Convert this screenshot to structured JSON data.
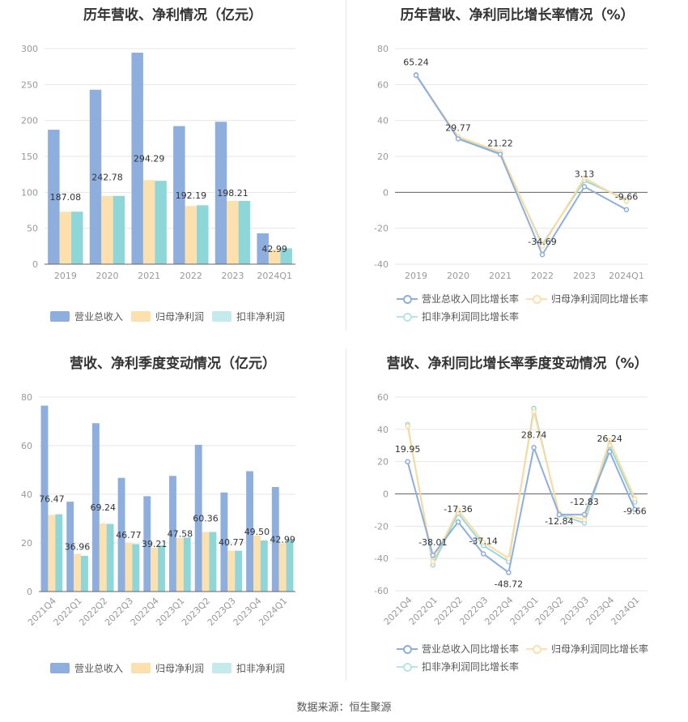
{
  "colors": {
    "revenue": "#8eaedd",
    "netprofit": "#fce0ad",
    "deducted": "#8ed6d8",
    "axis": "#999999",
    "grid": "#e6e6e6"
  },
  "legend": {
    "revenue": "营业总收入",
    "netprofit": "归母净利润",
    "deducted": "扣非净利润",
    "revenue_growth": "营业总收入同比增长率",
    "netprofit_growth": "归母净利润同比增长率",
    "deducted_growth": "扣非净利润同比增长率"
  },
  "source": "数据来源：恒生聚源",
  "chart_data": [
    {
      "id": "annual-bar",
      "type": "bar",
      "title": "历年营收、净利情况（亿元）",
      "categories": [
        "2019",
        "2020",
        "2021",
        "2022",
        "2023",
        "2024Q1"
      ],
      "ylim": [
        0,
        300
      ],
      "yticks": [
        0,
        50,
        100,
        150,
        200,
        250,
        300
      ],
      "series": [
        {
          "name": "营业总收入",
          "values": [
            187.08,
            242.78,
            294.29,
            192.19,
            198.21,
            42.99
          ],
          "labels": [
            "187.08",
            "242.78",
            "294.29",
            "192.19",
            "198.21",
            "42.99"
          ]
        },
        {
          "name": "归母净利润",
          "values": [
            73,
            95,
            117,
            81,
            88,
            20
          ]
        },
        {
          "name": "扣非净利润",
          "values": [
            73,
            95,
            116,
            82,
            88,
            22
          ]
        }
      ]
    },
    {
      "id": "annual-line",
      "type": "line",
      "title": "历年营收、净利同比增长率情况（%）",
      "categories": [
        "2019",
        "2020",
        "2021",
        "2022",
        "2023",
        "2024Q1"
      ],
      "ylim": [
        -40,
        80
      ],
      "yticks": [
        -40,
        -20,
        0,
        20,
        40,
        60,
        80
      ],
      "series": [
        {
          "name": "营业总收入同比增长率",
          "values": [
            65.24,
            29.77,
            21.22,
            -34.69,
            3.13,
            -9.66
          ],
          "labels": [
            "65.24",
            "29.77",
            "21.22",
            "-34.69",
            "3.13",
            "-9.66"
          ]
        },
        {
          "name": "归母净利润同比增长率",
          "values": [
            65,
            31,
            22.5,
            -30,
            8,
            -5
          ]
        },
        {
          "name": "扣非净利润同比增长率",
          "values": [
            65.5,
            30.5,
            21.5,
            -29,
            6.5,
            -4
          ]
        }
      ]
    },
    {
      "id": "quarter-bar",
      "type": "bar",
      "title": "营收、净利季度变动情况（亿元）",
      "categories": [
        "2021Q4",
        "2022Q1",
        "2022Q2",
        "2022Q3",
        "2022Q4",
        "2023Q1",
        "2023Q2",
        "2023Q3",
        "2023Q4",
        "2024Q1"
      ],
      "ylim": [
        0,
        80
      ],
      "yticks": [
        0,
        20,
        40,
        60,
        80
      ],
      "series": [
        {
          "name": "营业总收入",
          "values": [
            76.47,
            36.96,
            69.24,
            46.77,
            39.21,
            47.58,
            60.36,
            40.77,
            49.5,
            42.99
          ],
          "labels": [
            "76.47",
            "36.96",
            "69.24",
            "46.77",
            "39.21",
            "47.58",
            "60.36",
            "40.77",
            "49.50",
            "42.99"
          ]
        },
        {
          "name": "归母净利润",
          "values": [
            31.5,
            15.5,
            28,
            20,
            18,
            22,
            24.5,
            16.8,
            23,
            19.8
          ]
        },
        {
          "name": "扣非净利润",
          "values": [
            31.8,
            14.7,
            27.8,
            19.5,
            19,
            22.2,
            24.5,
            16.8,
            21,
            21.5
          ]
        }
      ]
    },
    {
      "id": "quarter-line",
      "type": "line",
      "title": "营收、净利同比增长率季度变动情况（%）",
      "categories": [
        "2021Q4",
        "2022Q1",
        "2022Q2",
        "2022Q3",
        "2022Q4",
        "2023Q1",
        "2023Q2",
        "2023Q3",
        "2023Q4",
        "2024Q1"
      ],
      "ylim": [
        -60,
        60
      ],
      "yticks": [
        -60,
        -40,
        -20,
        0,
        20,
        40,
        60
      ],
      "series": [
        {
          "name": "营业总收入同比增长率",
          "values": [
            19.95,
            -38.01,
            -17.36,
            -37.14,
            -48.72,
            28.74,
            -12.84,
            -12.83,
            26.24,
            -9.66
          ],
          "labels": [
            "19.95",
            "-38.01",
            "-17.36",
            "-37.14",
            "-48.72",
            "28.74",
            "-12.84",
            "-12.83",
            "26.24",
            "-9.66"
          ]
        },
        {
          "name": "归母净利润同比增长率",
          "values": [
            42,
            -42,
            -10,
            -30,
            -40,
            51,
            -12,
            -16,
            33,
            -3
          ]
        },
        {
          "name": "扣非净利润同比增长率",
          "values": [
            43,
            -44,
            -12,
            -32,
            -42,
            53,
            -13,
            -18,
            30,
            -5
          ]
        }
      ]
    }
  ]
}
